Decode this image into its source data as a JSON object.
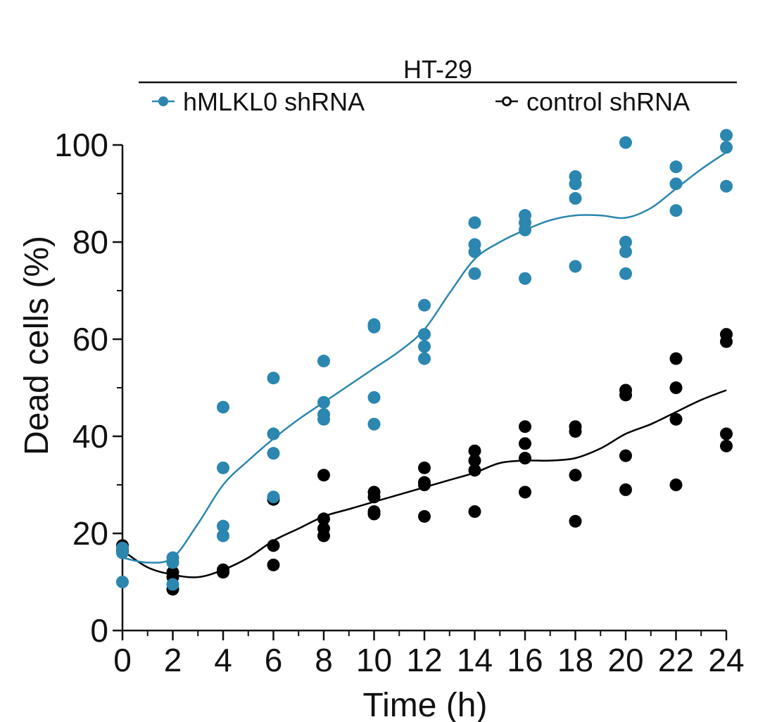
{
  "chart_data": {
    "type": "scatter",
    "title": "HT-29",
    "xlabel": "Time (h)",
    "ylabel": "Dead cells (%)",
    "xlim": [
      0,
      24
    ],
    "ylim": [
      0,
      100
    ],
    "xticks": [
      0,
      2,
      4,
      6,
      8,
      10,
      12,
      14,
      16,
      18,
      20,
      22,
      24
    ],
    "yticks": [
      0,
      20,
      40,
      60,
      80,
      100
    ],
    "legend_position": "top",
    "series": [
      {
        "name": "hMLKL0 shRNA",
        "color": "#2b86b0",
        "points": [
          [
            0,
            16
          ],
          [
            0,
            17
          ],
          [
            0,
            10
          ],
          [
            2,
            15
          ],
          [
            2,
            14
          ],
          [
            2,
            9.5
          ],
          [
            4,
            46
          ],
          [
            4,
            33.5
          ],
          [
            4,
            21.5
          ],
          [
            4,
            19.5
          ],
          [
            6,
            52
          ],
          [
            6,
            40.5
          ],
          [
            6,
            36.5
          ],
          [
            6,
            27.5
          ],
          [
            8,
            55.5
          ],
          [
            8,
            47
          ],
          [
            8,
            44.5
          ],
          [
            8,
            43.5
          ],
          [
            10,
            63
          ],
          [
            10,
            62.5
          ],
          [
            10,
            48
          ],
          [
            10,
            42.5
          ],
          [
            12,
            67
          ],
          [
            12,
            61
          ],
          [
            12,
            58.5
          ],
          [
            12,
            56
          ],
          [
            14,
            84
          ],
          [
            14,
            79.5
          ],
          [
            14,
            78
          ],
          [
            14,
            73.5
          ],
          [
            16,
            85.5
          ],
          [
            16,
            84
          ],
          [
            16,
            82.5
          ],
          [
            16,
            72.5
          ],
          [
            18,
            93.5
          ],
          [
            18,
            92
          ],
          [
            18,
            89
          ],
          [
            18,
            75
          ],
          [
            20,
            100.5
          ],
          [
            20,
            80
          ],
          [
            20,
            78
          ],
          [
            20,
            73.5
          ],
          [
            22,
            95.5
          ],
          [
            22,
            92
          ],
          [
            22,
            86.5
          ],
          [
            24,
            102
          ],
          [
            24,
            99.5
          ],
          [
            24,
            91.5
          ]
        ],
        "trend": [
          [
            0,
            15
          ],
          [
            1,
            14
          ],
          [
            2,
            15
          ],
          [
            3,
            22
          ],
          [
            4,
            30
          ],
          [
            5,
            35
          ],
          [
            6,
            39.5
          ],
          [
            7,
            43.5
          ],
          [
            8,
            47
          ],
          [
            9,
            50.5
          ],
          [
            10,
            54
          ],
          [
            11,
            57.5
          ],
          [
            12,
            62
          ],
          [
            13,
            69.5
          ],
          [
            14,
            76.5
          ],
          [
            15,
            80
          ],
          [
            16,
            82.5
          ],
          [
            17,
            84.5
          ],
          [
            18,
            85.5
          ],
          [
            19,
            85.5
          ],
          [
            20,
            85
          ],
          [
            21,
            87
          ],
          [
            22,
            91
          ],
          [
            23,
            95
          ],
          [
            24,
            98.5
          ]
        ]
      },
      {
        "name": "control shRNA",
        "color": "#000000",
        "points": [
          [
            0,
            17.5
          ],
          [
            0,
            16.5
          ],
          [
            2,
            12
          ],
          [
            2,
            11
          ],
          [
            2,
            8.5
          ],
          [
            4,
            12.5
          ],
          [
            4,
            12
          ],
          [
            6,
            27
          ],
          [
            6,
            17.5
          ],
          [
            6,
            13.5
          ],
          [
            8,
            32
          ],
          [
            8,
            23
          ],
          [
            8,
            21
          ],
          [
            8,
            19.5
          ],
          [
            10,
            28.5
          ],
          [
            10,
            27.5
          ],
          [
            10,
            24.5
          ],
          [
            10,
            24
          ],
          [
            12,
            33.5
          ],
          [
            12,
            30.5
          ],
          [
            12,
            30
          ],
          [
            12,
            23.5
          ],
          [
            14,
            37
          ],
          [
            14,
            35
          ],
          [
            14,
            33
          ],
          [
            14,
            24.5
          ],
          [
            16,
            42
          ],
          [
            16,
            38.5
          ],
          [
            16,
            35.5
          ],
          [
            16,
            28.5
          ],
          [
            18,
            42
          ],
          [
            18,
            41
          ],
          [
            18,
            32
          ],
          [
            18,
            22.5
          ],
          [
            20,
            49.5
          ],
          [
            20,
            48.5
          ],
          [
            20,
            36
          ],
          [
            20,
            29
          ],
          [
            22,
            56
          ],
          [
            22,
            50
          ],
          [
            22,
            43.5
          ],
          [
            22,
            30
          ],
          [
            24,
            61
          ],
          [
            24,
            59.5
          ],
          [
            24,
            40.5
          ],
          [
            24,
            38
          ]
        ],
        "trend": [
          [
            0,
            16.5
          ],
          [
            1,
            13
          ],
          [
            2,
            11.5
          ],
          [
            3,
            11
          ],
          [
            4,
            12.5
          ],
          [
            5,
            15
          ],
          [
            6,
            18.5
          ],
          [
            7,
            21
          ],
          [
            8,
            23.5
          ],
          [
            9,
            25
          ],
          [
            10,
            26.5
          ],
          [
            11,
            28
          ],
          [
            12,
            29.5
          ],
          [
            13,
            31
          ],
          [
            14,
            32.5
          ],
          [
            15,
            34.5
          ],
          [
            16,
            35
          ],
          [
            17,
            35
          ],
          [
            18,
            35.5
          ],
          [
            19,
            37.5
          ],
          [
            20,
            40.5
          ],
          [
            21,
            42.5
          ],
          [
            22,
            45
          ],
          [
            23,
            47.5
          ],
          [
            24,
            49.5
          ]
        ]
      }
    ]
  }
}
